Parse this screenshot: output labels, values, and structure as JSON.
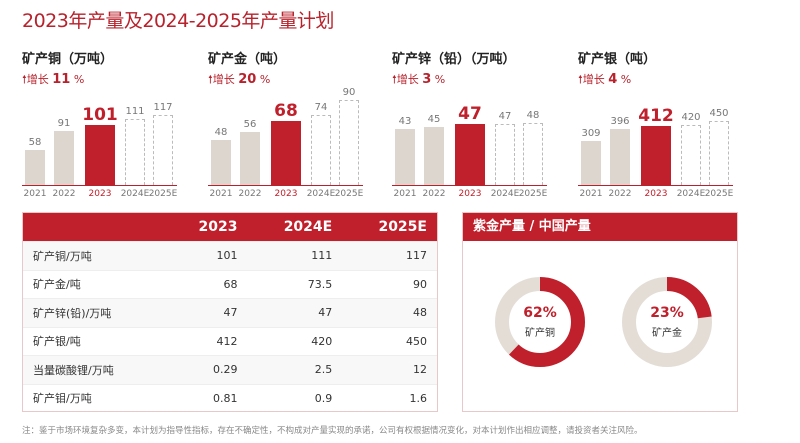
{
  "title": "2023年产量及2024-2025年产量计划",
  "colors": {
    "accent": "#c0202b",
    "bar": "#ddd6cf",
    "ring_bg": "#e3ddd6"
  },
  "chart_data": [
    {
      "type": "bar",
      "title": "矿产铜（万吨）",
      "growth_label": "增长",
      "growth": "11",
      "growth_unit": "%",
      "categories": [
        "2021",
        "2022",
        "2023",
        "2024E",
        "2025E"
      ],
      "values": [
        58,
        91,
        101,
        111,
        117
      ],
      "estimated": [
        false,
        false,
        false,
        true,
        true
      ],
      "highlight": "2023"
    },
    {
      "type": "bar",
      "title": "矿产金（吨）",
      "growth_label": "增长",
      "growth": "20",
      "growth_unit": "%",
      "categories": [
        "2021",
        "2022",
        "2023",
        "2024E",
        "2025E"
      ],
      "values": [
        48,
        56,
        68,
        74,
        90
      ],
      "estimated": [
        false,
        false,
        false,
        true,
        true
      ],
      "highlight": "2023"
    },
    {
      "type": "bar",
      "title": "矿产锌（铅）（万吨）",
      "growth_label": "增长",
      "growth": "3",
      "growth_unit": "%",
      "categories": [
        "2021",
        "2022",
        "2023",
        "2024E",
        "2025E"
      ],
      "values": [
        43,
        45,
        47,
        47,
        48
      ],
      "estimated": [
        false,
        false,
        false,
        true,
        true
      ],
      "highlight": "2023"
    },
    {
      "type": "bar",
      "title": "矿产银（吨）",
      "growth_label": "增长",
      "growth": "4",
      "growth_unit": "%",
      "categories": [
        "2021",
        "2022",
        "2023",
        "2024E",
        "2025E"
      ],
      "values": [
        309,
        396,
        412,
        420,
        450
      ],
      "estimated": [
        false,
        false,
        false,
        true,
        true
      ],
      "highlight": "2023"
    },
    {
      "type": "pie",
      "title": "紫金产量 / 中国产量",
      "items": [
        {
          "label": "矿产铜",
          "percent": 62
        },
        {
          "label": "矿产金",
          "percent": 23
        }
      ]
    }
  ],
  "table": {
    "headers": [
      "",
      "2023",
      "2024E",
      "2025E"
    ],
    "rows": [
      [
        "矿产铜/万吨",
        "101",
        "111",
        "117"
      ],
      [
        "矿产金/吨",
        "68",
        "73.5",
        "90"
      ],
      [
        "矿产锌(铅)/万吨",
        "47",
        "47",
        "48"
      ],
      [
        "矿产银/吨",
        "412",
        "420",
        "450"
      ],
      [
        "当量碳酸锂/万吨",
        "0.29",
        "2.5",
        "12"
      ],
      [
        "矿产钼/万吨",
        "0.81",
        "0.9",
        "1.6"
      ]
    ]
  },
  "note": "注：鉴于市场环境复杂多变，本计划为指导性指标，存在不确定性，不构成对产量实现的承诺，公司有权根据情况变化，对本计划作出相应调整，请投资者关注风险。"
}
